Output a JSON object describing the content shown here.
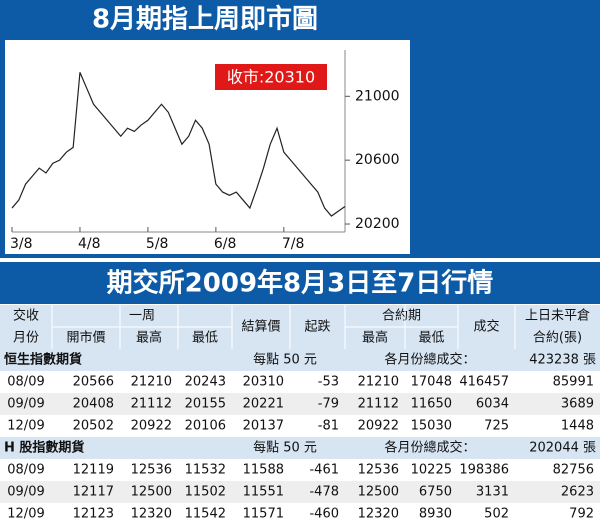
{
  "chart_data": {
    "type": "line",
    "title": "8月期指上周即市圖",
    "annotation": "收市:20310",
    "color": "#222222",
    "categories": [
      "3/8",
      null,
      null,
      null,
      null,
      null,
      null,
      null,
      null,
      null,
      "4/8",
      null,
      null,
      null,
      null,
      null,
      null,
      null,
      null,
      null,
      "5/8",
      null,
      null,
      null,
      null,
      null,
      null,
      null,
      null,
      null,
      "6/8",
      null,
      null,
      null,
      null,
      null,
      null,
      null,
      null,
      null,
      "7/8",
      null,
      null,
      null,
      null,
      null,
      null,
      null,
      null,
      null
    ],
    "values": [
      20300,
      20350,
      20450,
      20500,
      20550,
      20520,
      20580,
      20600,
      20650,
      20680,
      21150,
      21050,
      20950,
      20900,
      20850,
      20800,
      20750,
      20800,
      20780,
      20820,
      20850,
      20900,
      20950,
      20900,
      20800,
      20700,
      20750,
      20850,
      20800,
      20700,
      20450,
      20400,
      20380,
      20400,
      20350,
      20300,
      20420,
      20550,
      20700,
      20800,
      20650,
      20600,
      20550,
      20500,
      20450,
      20400,
      20300,
      20250,
      20280,
      20310
    ],
    "ylim": [
      20150,
      21290
    ],
    "yticks": [
      20200,
      20600,
      21000
    ]
  },
  "table": {
    "title": "期交所2009年8月3日至7日行情",
    "headers": {
      "month": [
        "交收",
        "月份"
      ],
      "week": "一周",
      "open": "開市價",
      "high": "最高",
      "low": "最低",
      "settle": "結算價",
      "change": "起跌",
      "contract": "合約期",
      "c_high": "最高",
      "c_low": "最低",
      "volume": "成交",
      "oi": [
        "上日未平倉",
        "合約(張)"
      ]
    },
    "sections": [
      {
        "name": "恒生指數期貨",
        "unit": "每點 50 元",
        "total_label": "各月份總成交：",
        "total": "423238 張",
        "rows": [
          [
            "08/09",
            "20566",
            "21210",
            "20243",
            "20310",
            "-53",
            "21210",
            "17048",
            "416457",
            "85991"
          ],
          [
            "09/09",
            "20408",
            "21112",
            "20155",
            "20221",
            "-79",
            "21112",
            "11650",
            "6034",
            "3689"
          ],
          [
            "12/09",
            "20502",
            "20922",
            "20106",
            "20137",
            "-81",
            "20922",
            "15030",
            "725",
            "1448"
          ]
        ]
      },
      {
        "name": "H 股指數期貨",
        "unit": "每點 50 元",
        "total_label": "各月份總成交：",
        "total": "202044 張",
        "rows": [
          [
            "08/09",
            "12119",
            "12536",
            "11532",
            "11588",
            "-461",
            "12536",
            "10225",
            "198386",
            "82756"
          ],
          [
            "09/09",
            "12117",
            "12500",
            "11502",
            "11551",
            "-478",
            "12500",
            "6750",
            "3131",
            "2623"
          ],
          [
            "12/09",
            "12123",
            "12320",
            "11542",
            "11571",
            "-460",
            "12320",
            "8930",
            "502",
            "792"
          ]
        ]
      }
    ]
  }
}
